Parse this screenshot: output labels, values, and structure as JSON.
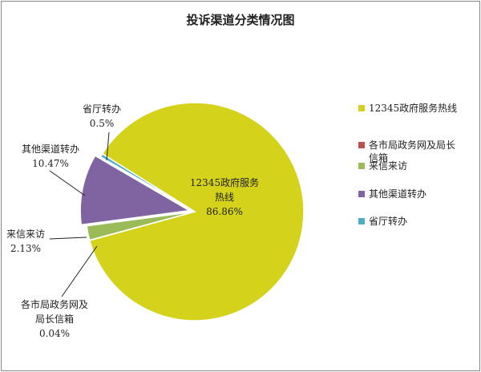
{
  "chart_data": {
    "type": "pie",
    "title": "投诉渠道分类情况图",
    "categories": [
      "12345政府服务热线",
      "各市局政务网及局长信箱",
      "来信来访",
      "其他渠道转办",
      "省厅转办"
    ],
    "values": [
      86.86,
      0.04,
      2.13,
      10.47,
      0.5
    ],
    "value_labels": [
      "86.86%",
      "0.04%",
      "2.13%",
      "10.47%",
      "0.5%"
    ],
    "colors": [
      "#d4d21b",
      "#c0504d",
      "#9bbb59",
      "#8064a2",
      "#4bacc6"
    ],
    "exploded": [
      "其他渠道转办"
    ],
    "legend": {
      "placement": "right",
      "entries": [
        "12345政府服务热线",
        "各市局政务网及局长信箱",
        "来信来访",
        "其他渠道转办",
        "省厅转办"
      ]
    }
  }
}
